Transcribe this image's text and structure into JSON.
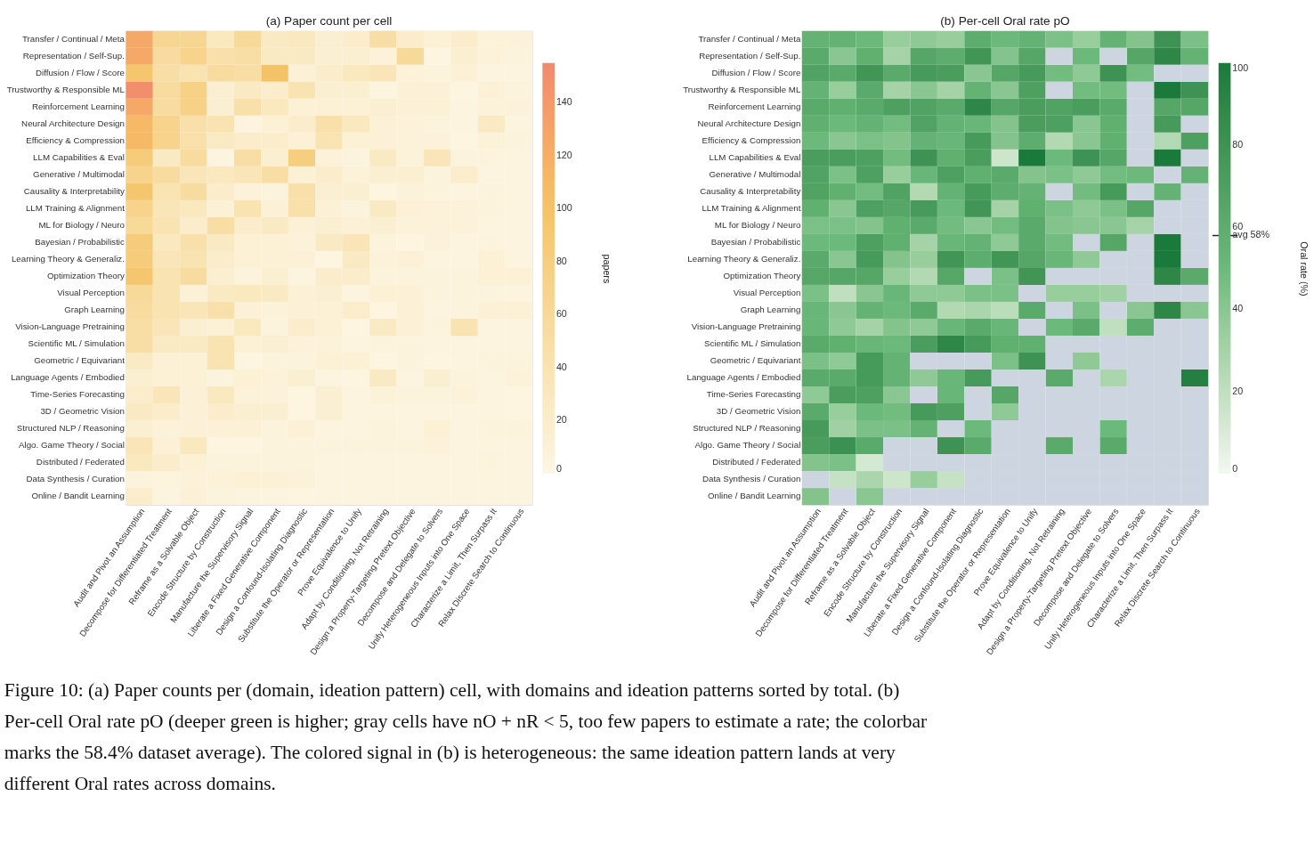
{
  "chart_data": [
    {
      "type": "heatmap",
      "title": "(a) Paper count per cell",
      "clabel": "papers",
      "clim": [
        0,
        155
      ],
      "cticks": [
        0,
        20,
        40,
        60,
        80,
        100,
        120,
        140
      ],
      "categories": [
        "Audit and Pivot an Assumption",
        "Decompose for Differentiated Treatment",
        "Reframe as a Solvable Object",
        "Encode Structure by Construction",
        "Manufacture the Supervisory Signal",
        "Liberate a Fixed Generative Component",
        "Design a Confound-Isolating Diagnostic",
        "Substitute the Operator or Representation",
        "Prove Equivalence to Unify",
        "Adapt by Conditioning, Not Retraining",
        "Design a Property-Targeting Pretext Objective",
        "Decompose and Delegate to Solvers",
        "Unify Heterogeneous Inputs into One Space",
        "Characterize a Limit, Then Surpass It",
        "Relax Discrete Search to Continuous"
      ],
      "y_categories": [
        "Transfer / Continual / Meta",
        "Representation / Self-Sup.",
        "Diffusion / Flow / Score",
        "Trustworthy & Responsible ML",
        "Reinforcement Learning",
        "Neural Architecture Design",
        "Efficiency & Compression",
        "LLM Capabilities & Eval",
        "Generative / Multimodal",
        "Causality & Interpretability",
        "LLM Training & Alignment",
        "ML for Biology / Neuro",
        "Bayesian / Probabilistic",
        "Learning Theory & Generaliz.",
        "Optimization Theory",
        "Visual Perception",
        "Graph Learning",
        "Vision-Language Pretraining",
        "Scientific ML / Simulation",
        "Geometric / Equivariant",
        "Language Agents / Embodied",
        "Time-Series Forecasting",
        "3D / Geometric Vision",
        "Structured NLP / Reasoning",
        "Algo. Game Theory / Social",
        "Distributed / Federated",
        "Data Synthesis / Curation",
        "Online / Bandit Learning"
      ],
      "cells": [
        [
          125,
          65,
          65,
          30,
          60,
          25,
          30,
          15,
          20,
          50,
          20,
          12,
          20,
          8,
          8
        ],
        [
          125,
          55,
          70,
          45,
          50,
          25,
          25,
          15,
          15,
          8,
          60,
          3,
          15,
          8,
          6
        ],
        [
          95,
          50,
          40,
          55,
          50,
          100,
          10,
          20,
          30,
          35,
          8,
          6,
          12,
          5,
          5
        ],
        [
          150,
          55,
          75,
          15,
          25,
          20,
          40,
          15,
          15,
          4,
          10,
          10,
          3,
          10,
          6
        ],
        [
          125,
          55,
          75,
          15,
          45,
          30,
          12,
          12,
          12,
          15,
          10,
          12,
          4,
          8,
          8
        ],
        [
          110,
          70,
          45,
          40,
          5,
          12,
          20,
          45,
          30,
          10,
          8,
          6,
          4,
          25,
          5
        ],
        [
          110,
          70,
          45,
          25,
          20,
          20,
          10,
          40,
          12,
          10,
          8,
          8,
          3,
          8,
          6
        ],
        [
          85,
          25,
          55,
          5,
          50,
          15,
          80,
          8,
          6,
          25,
          8,
          35,
          6,
          6,
          5
        ],
        [
          70,
          55,
          35,
          30,
          35,
          50,
          12,
          20,
          8,
          15,
          15,
          6,
          20,
          5,
          5
        ],
        [
          95,
          40,
          55,
          20,
          8,
          6,
          45,
          15,
          15,
          3,
          8,
          6,
          4,
          6,
          5
        ],
        [
          70,
          35,
          30,
          10,
          40,
          10,
          45,
          12,
          6,
          25,
          10,
          8,
          8,
          6,
          5
        ],
        [
          60,
          40,
          20,
          50,
          20,
          25,
          10,
          15,
          10,
          15,
          8,
          8,
          8,
          5,
          5
        ],
        [
          85,
          30,
          45,
          25,
          12,
          12,
          8,
          25,
          35,
          6,
          3,
          8,
          5,
          6,
          5
        ],
        [
          85,
          35,
          40,
          20,
          12,
          12,
          10,
          3,
          25,
          8,
          10,
          5,
          5,
          12,
          5
        ],
        [
          95,
          40,
          55,
          15,
          6,
          15,
          5,
          20,
          20,
          6,
          6,
          6,
          6,
          12,
          12
        ],
        [
          60,
          40,
          10,
          25,
          30,
          25,
          10,
          15,
          4,
          12,
          10,
          6,
          6,
          6,
          4
        ],
        [
          55,
          40,
          35,
          45,
          10,
          8,
          10,
          12,
          20,
          3,
          10,
          4,
          6,
          10,
          12
        ],
        [
          50,
          35,
          15,
          12,
          30,
          6,
          20,
          12,
          3,
          25,
          10,
          6,
          40,
          4,
          5
        ],
        [
          50,
          25,
          25,
          40,
          10,
          15,
          8,
          8,
          5,
          6,
          6,
          5,
          5,
          5,
          5
        ],
        [
          25,
          10,
          12,
          40,
          3,
          6,
          6,
          12,
          12,
          3,
          6,
          3,
          5,
          6,
          6
        ],
        [
          15,
          12,
          12,
          6,
          12,
          8,
          15,
          4,
          3,
          25,
          5,
          15,
          6,
          4,
          8
        ],
        [
          20,
          35,
          10,
          30,
          8,
          8,
          3,
          15,
          4,
          8,
          6,
          6,
          8,
          4,
          3
        ],
        [
          25,
          20,
          10,
          20,
          15,
          15,
          3,
          15,
          4,
          5,
          5,
          5,
          5,
          5,
          3
        ],
        [
          15,
          8,
          10,
          10,
          10,
          6,
          10,
          5,
          5,
          6,
          5,
          12,
          5,
          6,
          6
        ],
        [
          35,
          10,
          30,
          3,
          3,
          6,
          6,
          6,
          6,
          6,
          6,
          8,
          5,
          4,
          4
        ],
        [
          30,
          20,
          12,
          6,
          6,
          6,
          6,
          5,
          5,
          5,
          5,
          5,
          5,
          6,
          4
        ],
        [
          6,
          6,
          8,
          8,
          12,
          10,
          8,
          4,
          4,
          4,
          4,
          4,
          4,
          4,
          4
        ],
        [
          20,
          5,
          10,
          6,
          4,
          4,
          3,
          4,
          4,
          4,
          4,
          4,
          4,
          4,
          4
        ]
      ],
      "annotations": [
        "Figure 10: (a) Paper counts per (domain, ideation pattern) cell, with domains and ideation patterns sorted by total. (b) Per-cell Oral rate pO (deeper green is higher; gray cells have nO + nR < 5, too few papers to estimate a rate; the colorbar marks the 58.4% dataset average). The colored signal in (b) is heterogeneous: the same ideation pattern lands at very different Oral rates across domains."
      ]
    },
    {
      "type": "heatmap",
      "title": "(b) Per-cell Oral rate pO",
      "clabel": "Oral rate (%)",
      "clim": [
        0,
        100
      ],
      "cticks": [
        0,
        20,
        40,
        {
          "value": 58,
          "label": "avg 58%"
        },
        60,
        80,
        100
      ],
      "categories": [
        "Audit and Pivot an Assumption",
        "Decompose for Differentiated Treatment",
        "Reframe as a Solvable Object",
        "Encode Structure by Construction",
        "Manufacture the Supervisory Signal",
        "Liberate a Fixed Generative Component",
        "Design a Confound-Isolating Diagnostic",
        "Substitute the Operator or Representation",
        "Prove Equivalence to Unify",
        "Adapt by Conditioning, Not Retraining",
        "Design a Property-Targeting Pretext Objective",
        "Decompose and Delegate to Solvers",
        "Unify Heterogeneous Inputs into One Space",
        "Characterize a Limit, Then Surpass It",
        "Relax Discrete Search to Continuous"
      ],
      "y_categories": [
        "Transfer / Continual / Meta",
        "Representation / Self-Sup.",
        "Diffusion / Flow / Score",
        "Trustworthy & Responsible ML",
        "Reinforcement Learning",
        "Neural Architecture Design",
        "Efficiency & Compression",
        "LLM Capabilities & Eval",
        "Generative / Multimodal",
        "Causality & Interpretability",
        "LLM Training & Alignment",
        "ML for Biology / Neuro",
        "Bayesian / Probabilistic",
        "Learning Theory & Generaliz.",
        "Optimization Theory",
        "Visual Perception",
        "Graph Learning",
        "Vision-Language Pretraining",
        "Scientific ML / Simulation",
        "Geometric / Equivariant",
        "Language Agents / Embodied",
        "Time-Series Forecasting",
        "3D / Geometric Vision",
        "Structured NLP / Reasoning",
        "Algo. Game Theory / Social",
        "Distributed / Federated",
        "Data Synthesis / Curation",
        "Online / Bandit Learning"
      ],
      "cells": [
        [
          55,
          55,
          50,
          35,
          38,
          35,
          60,
          50,
          55,
          45,
          35,
          55,
          42,
          80,
          45
        ],
        [
          62,
          40,
          58,
          30,
          65,
          60,
          78,
          42,
          65,
          null,
          50,
          null,
          65,
          90,
          55
        ],
        [
          68,
          62,
          78,
          62,
          75,
          72,
          40,
          65,
          75,
          48,
          38,
          80,
          48,
          null,
          null
        ],
        [
          55,
          35,
          62,
          30,
          40,
          30,
          55,
          40,
          70,
          null,
          48,
          48,
          null,
          100,
          80
        ],
        [
          62,
          58,
          62,
          70,
          68,
          62,
          90,
          65,
          72,
          68,
          72,
          62,
          null,
          65,
          65
        ],
        [
          58,
          50,
          55,
          48,
          68,
          55,
          52,
          42,
          72,
          70,
          40,
          58,
          null,
          75,
          null
        ],
        [
          50,
          40,
          45,
          42,
          55,
          52,
          75,
          42,
          60,
          25,
          40,
          58,
          null,
          25,
          70
        ],
        [
          72,
          72,
          70,
          48,
          80,
          58,
          72,
          15,
          100,
          50,
          80,
          65,
          null,
          100,
          null
        ],
        [
          68,
          45,
          70,
          35,
          52,
          70,
          58,
          62,
          42,
          45,
          38,
          48,
          50,
          null,
          55
        ],
        [
          68,
          58,
          48,
          68,
          25,
          55,
          75,
          60,
          55,
          null,
          48,
          75,
          null,
          55,
          null
        ],
        [
          58,
          40,
          70,
          65,
          75,
          50,
          78,
          30,
          58,
          45,
          38,
          45,
          65,
          null,
          null
        ],
        [
          45,
          45,
          42,
          58,
          62,
          48,
          40,
          48,
          62,
          42,
          40,
          40,
          30,
          null,
          null
        ],
        [
          50,
          50,
          70,
          58,
          30,
          52,
          55,
          38,
          62,
          48,
          null,
          65,
          null,
          100,
          null
        ],
        [
          62,
          40,
          75,
          42,
          35,
          78,
          60,
          78,
          65,
          52,
          38,
          null,
          null,
          100,
          null
        ],
        [
          65,
          65,
          65,
          35,
          25,
          65,
          null,
          45,
          78,
          null,
          null,
          null,
          null,
          90,
          62
        ],
        [
          45,
          20,
          40,
          52,
          38,
          38,
          45,
          45,
          null,
          35,
          35,
          32,
          null,
          null,
          null
        ],
        [
          52,
          40,
          55,
          50,
          62,
          25,
          28,
          22,
          62,
          null,
          45,
          null,
          40,
          90,
          40
        ],
        [
          52,
          38,
          30,
          42,
          38,
          52,
          62,
          52,
          null,
          50,
          62,
          20,
          60,
          null,
          null
        ],
        [
          62,
          58,
          52,
          50,
          72,
          90,
          75,
          58,
          58,
          null,
          null,
          null,
          null,
          null,
          null
        ],
        [
          45,
          38,
          75,
          55,
          null,
          null,
          null,
          45,
          80,
          null,
          38,
          null,
          null,
          null,
          null
        ],
        [
          62,
          62,
          75,
          55,
          38,
          52,
          75,
          null,
          null,
          62,
          null,
          28,
          null,
          null,
          95
        ],
        [
          38,
          72,
          70,
          40,
          null,
          52,
          null,
          65,
          null,
          null,
          null,
          null,
          null,
          null,
          null
        ],
        [
          62,
          35,
          50,
          48,
          75,
          70,
          null,
          38,
          null,
          null,
          null,
          null,
          null,
          null,
          null
        ],
        [
          75,
          32,
          45,
          45,
          55,
          null,
          50,
          null,
          null,
          null,
          null,
          50,
          null,
          null,
          null
        ],
        [
          72,
          82,
          62,
          null,
          null,
          80,
          62,
          null,
          null,
          62,
          null,
          62,
          null,
          null,
          null
        ],
        [
          42,
          45,
          12,
          null,
          null,
          null,
          null,
          null,
          null,
          null,
          null,
          null,
          null,
          null,
          null
        ],
        [
          null,
          18,
          28,
          15,
          35,
          18,
          null,
          null,
          null,
          null,
          null,
          null,
          null,
          null,
          null
        ],
        [
          42,
          null,
          40,
          null,
          null,
          null,
          null,
          null,
          null,
          null,
          null,
          null,
          null,
          null,
          null
        ]
      ]
    }
  ]
}
